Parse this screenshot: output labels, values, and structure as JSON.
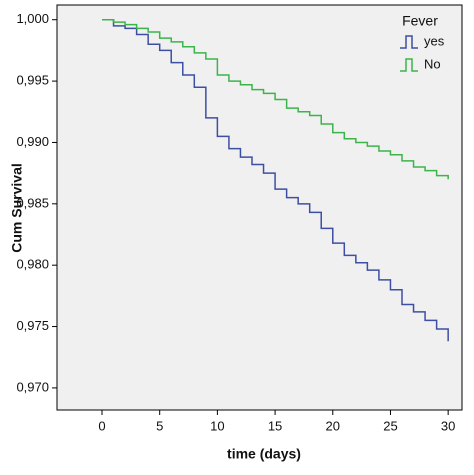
{
  "chart_data": {
    "type": "step",
    "xlabel": "time (days)",
    "ylabel": "Cum Survival",
    "legend_title": "Fever",
    "legend_position": "upper right",
    "x": [
      0,
      1,
      2,
      3,
      4,
      5,
      6,
      7,
      8,
      9,
      10,
      11,
      12,
      13,
      14,
      15,
      16,
      17,
      18,
      19,
      20,
      21,
      22,
      23,
      24,
      25,
      26,
      27,
      28,
      29,
      30
    ],
    "series": [
      {
        "name": "yes",
        "color": "#3d4fa3",
        "values": [
          1.0,
          0.9995,
          0.9993,
          0.9988,
          0.998,
          0.9975,
          0.9965,
          0.9955,
          0.9945,
          0.992,
          0.9905,
          0.9895,
          0.9888,
          0.9882,
          0.9875,
          0.9862,
          0.9855,
          0.985,
          0.9843,
          0.983,
          0.9818,
          0.9808,
          0.9802,
          0.9796,
          0.9788,
          0.978,
          0.9768,
          0.9762,
          0.9755,
          0.9748,
          0.9738
        ]
      },
      {
        "name": "No",
        "color": "#3bb54a",
        "values": [
          1.0,
          0.9998,
          0.9996,
          0.9993,
          0.999,
          0.9985,
          0.9982,
          0.9978,
          0.9973,
          0.9968,
          0.9955,
          0.995,
          0.9947,
          0.9943,
          0.994,
          0.9935,
          0.9928,
          0.9925,
          0.9922,
          0.9915,
          0.9908,
          0.9903,
          0.99,
          0.9897,
          0.9893,
          0.989,
          0.9885,
          0.988,
          0.9877,
          0.9873,
          0.987
        ]
      }
    ],
    "xlim": [
      -3.9,
      31.2
    ],
    "xticks": [
      0,
      5,
      10,
      15,
      20,
      25,
      30
    ],
    "ylim": [
      0.9682,
      1.0012
    ],
    "yticks": [
      {
        "value": 0.97,
        "label": "0,970"
      },
      {
        "value": 0.975,
        "label": "0,975"
      },
      {
        "value": 0.98,
        "label": "0,980"
      },
      {
        "value": 0.985,
        "label": "0,985"
      },
      {
        "value": 0.99,
        "label": "0,990"
      },
      {
        "value": 0.995,
        "label": "0,995"
      },
      {
        "value": 1.0,
        "label": "1,000"
      }
    ]
  }
}
